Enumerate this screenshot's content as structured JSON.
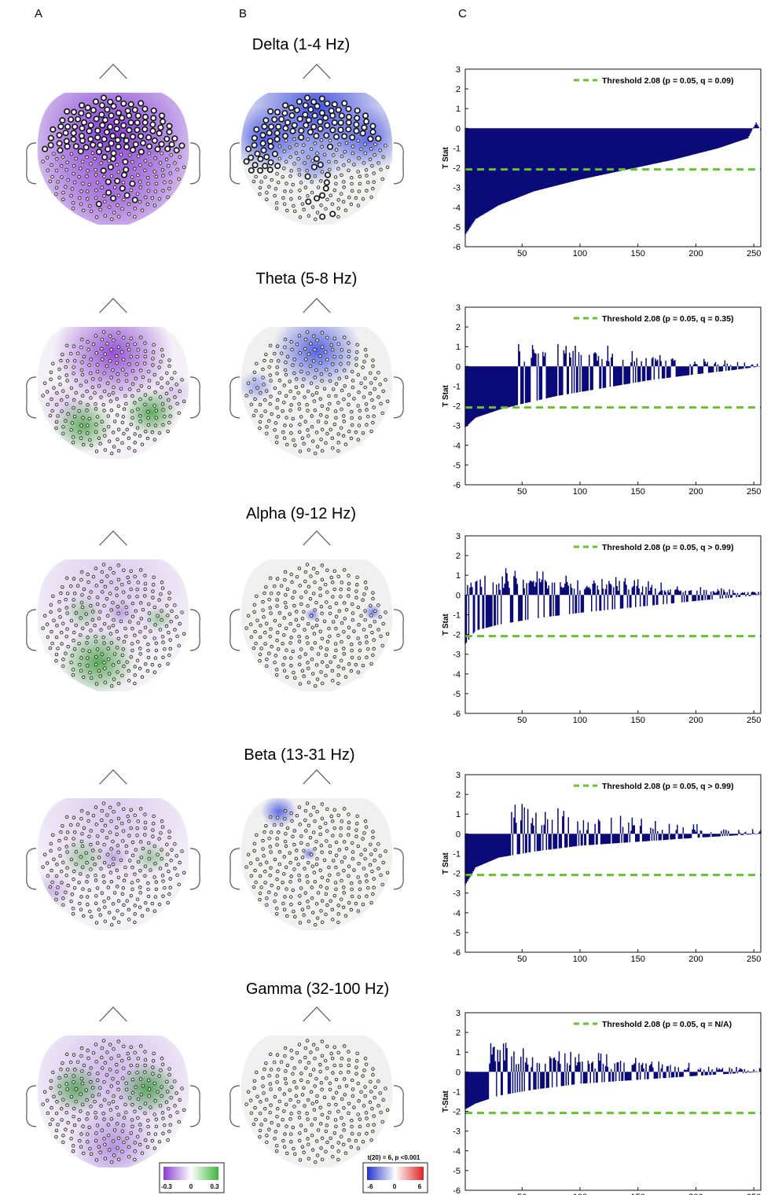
{
  "panel_labels": [
    "A",
    "B",
    "C"
  ],
  "bands": [
    {
      "title": "Delta (1-4 Hz)",
      "threshold_label": "Threshold 2.08 (p = 0.05, q = 0.09)",
      "ylabel": "T Stat"
    },
    {
      "title": "Theta (5-8 Hz)",
      "threshold_label": "Threshold 2.08 (p = 0.05, q = 0.35)",
      "ylabel": "T Stat"
    },
    {
      "title": "Alpha (9-12 Hz)",
      "threshold_label": "Threshold 2.08 (p = 0.05, q > 0.99)",
      "ylabel": "T Stat"
    },
    {
      "title": "Beta (13-31 Hz)",
      "threshold_label": "Threshold 2.08 (p = 0.05, q > 0.99)",
      "ylabel": "T Stat"
    },
    {
      "title": "Gamma (32-100 Hz)",
      "threshold_label": "Threshold 2.08 (p = 0.05, q = N/A)",
      "ylabel": "T-Stat"
    }
  ],
  "colorbar_a": {
    "ticks": [
      "-0.3",
      "0",
      "0.3"
    ],
    "colors": [
      "#8a3fd0",
      "#ffffff",
      "#3fb53f"
    ]
  },
  "colorbar_b": {
    "title": "t(20) = 6, p <0.001",
    "ticks": [
      "-6",
      "0",
      "6"
    ],
    "colors": [
      "#2233cc",
      "#ffffff",
      "#dd2222"
    ]
  },
  "colors": {
    "bar": "#0a0a78",
    "threshold": "#66c22e",
    "head_fill": "#f0f0f0"
  },
  "chart_data": [
    {
      "type": "bar",
      "title": "Delta (1-4 Hz)",
      "ylabel": "T Stat",
      "xlim": [
        1,
        256
      ],
      "ylim": [
        -6,
        3
      ],
      "xticks": [
        50,
        100,
        150,
        200,
        250
      ],
      "yticks": [
        -6,
        -5,
        -4,
        -3,
        -2,
        -1,
        0,
        1,
        2,
        3
      ],
      "threshold": -2.08,
      "n_channels": 256,
      "sorted_profile": {
        "x": [
          1,
          10,
          30,
          60,
          100,
          140,
          180,
          220,
          245,
          252,
          256
        ],
        "y": [
          -5.4,
          -4.6,
          -3.9,
          -3.2,
          -2.6,
          -2.1,
          -1.6,
          -1.0,
          -0.5,
          0.3,
          -0.1
        ]
      },
      "spike_density": 0,
      "spike_start": 0
    },
    {
      "type": "bar",
      "title": "Theta (5-8 Hz)",
      "ylabel": "T Stat",
      "xlim": [
        1,
        256
      ],
      "ylim": [
        -6,
        3
      ],
      "xticks": [
        50,
        100,
        150,
        200,
        250
      ],
      "yticks": [
        -6,
        -5,
        -4,
        -3,
        -2,
        -1,
        0,
        1,
        2,
        3
      ],
      "threshold": -2.08,
      "n_channels": 256,
      "sorted_profile": {
        "x": [
          1,
          10,
          30,
          50,
          80,
          120,
          160,
          200,
          230,
          256
        ],
        "y": [
          -3.1,
          -2.6,
          -2.2,
          -1.9,
          -1.5,
          -1.1,
          -0.7,
          -0.4,
          -0.2,
          0.0
        ]
      },
      "spike_density": 0.3,
      "spike_start": 45
    },
    {
      "type": "bar",
      "title": "Alpha (9-12 Hz)",
      "ylabel": "T Stat",
      "xlim": [
        1,
        256
      ],
      "ylim": [
        -6,
        3
      ],
      "xticks": [
        50,
        100,
        150,
        200,
        250
      ],
      "yticks": [
        -6,
        -5,
        -4,
        -3,
        -2,
        -1,
        0,
        1,
        2,
        3
      ],
      "threshold": -2.08,
      "n_channels": 256,
      "sorted_profile": {
        "x": [
          1,
          10,
          30,
          60,
          100,
          150,
          200,
          256
        ],
        "y": [
          -2.5,
          -1.8,
          -1.5,
          -1.2,
          -0.9,
          -0.6,
          -0.3,
          0.0
        ]
      },
      "spike_density": 0.55,
      "spike_start": 3
    },
    {
      "type": "bar",
      "title": "Beta (13-31 Hz)",
      "ylabel": "T Stat",
      "xlim": [
        1,
        256
      ],
      "ylim": [
        -6,
        3
      ],
      "xticks": [
        50,
        100,
        150,
        200,
        250
      ],
      "yticks": [
        -6,
        -5,
        -4,
        -3,
        -2,
        -1,
        0,
        1,
        2,
        3
      ],
      "threshold": -2.08,
      "n_channels": 256,
      "sorted_profile": {
        "x": [
          1,
          10,
          30,
          60,
          100,
          150,
          200,
          256
        ],
        "y": [
          -2.6,
          -1.7,
          -1.2,
          -0.9,
          -0.6,
          -0.4,
          -0.2,
          0.0
        ]
      },
      "spike_density": 0.3,
      "spike_start": 40
    },
    {
      "type": "bar",
      "title": "Gamma (32-100 Hz)",
      "ylabel": "T-Stat",
      "xlim": [
        1,
        256
      ],
      "ylim": [
        -6,
        3
      ],
      "xticks": [
        50,
        100,
        150,
        200,
        250
      ],
      "yticks": [
        -6,
        -5,
        -4,
        -3,
        -2,
        -1,
        0,
        1,
        2,
        3
      ],
      "threshold": -2.08,
      "n_channels": 256,
      "sorted_profile": {
        "x": [
          1,
          10,
          30,
          60,
          100,
          150,
          200,
          256
        ],
        "y": [
          -1.9,
          -1.6,
          -1.2,
          -0.9,
          -0.6,
          -0.4,
          -0.2,
          0.0
        ]
      },
      "spike_density": 0.45,
      "spike_start": 20
    }
  ],
  "topomaps": [
    {
      "band": "Delta",
      "a_blobs": [
        {
          "u": 0.5,
          "v": 0.3,
          "r": 0.75,
          "c": "#7a2fd0",
          "a": 0.95
        },
        {
          "u": 0.5,
          "v": 0.75,
          "r": 0.6,
          "c": "#9a5ad8",
          "a": 0.75
        }
      ],
      "b_blobs": [
        {
          "u": 0.5,
          "v": 0.12,
          "r": 0.55,
          "c": "#3040e0",
          "a": 0.9
        },
        {
          "u": 0.15,
          "v": 0.35,
          "r": 0.25,
          "c": "#3040e0",
          "a": 0.8
        },
        {
          "u": 0.85,
          "v": 0.35,
          "r": 0.25,
          "c": "#3040e0",
          "a": 0.7
        },
        {
          "u": 0.48,
          "v": 0.55,
          "r": 0.15,
          "c": "#5060e0",
          "a": 0.5
        }
      ],
      "b_highlight": "delta"
    },
    {
      "band": "Theta",
      "a_blobs": [
        {
          "u": 0.5,
          "v": 0.2,
          "r": 0.4,
          "c": "#8a3fd0",
          "a": 0.9
        },
        {
          "u": 0.2,
          "v": 0.6,
          "r": 0.2,
          "c": "#c0a0e0",
          "a": 0.5
        },
        {
          "u": 0.9,
          "v": 0.5,
          "r": 0.15,
          "c": "#c0a0e0",
          "a": 0.5
        },
        {
          "u": 0.3,
          "v": 0.75,
          "r": 0.2,
          "c": "#3fa040",
          "a": 0.8
        },
        {
          "u": 0.75,
          "v": 0.65,
          "r": 0.18,
          "c": "#3fa040",
          "a": 0.85
        }
      ],
      "b_blobs": [
        {
          "u": 0.5,
          "v": 0.18,
          "r": 0.3,
          "c": "#3a4ae0",
          "a": 0.85
        },
        {
          "u": 0.1,
          "v": 0.45,
          "r": 0.12,
          "c": "#5060e0",
          "a": 0.5
        }
      ],
      "b_highlight": "none"
    },
    {
      "band": "Alpha",
      "a_blobs": [
        {
          "u": 0.5,
          "v": 0.2,
          "r": 0.6,
          "c": "#c8b0ea",
          "a": 0.6
        },
        {
          "u": 0.4,
          "v": 0.78,
          "r": 0.25,
          "c": "#3fa040",
          "a": 0.85
        },
        {
          "u": 0.3,
          "v": 0.4,
          "r": 0.12,
          "c": "#70b870",
          "a": 0.6
        },
        {
          "u": 0.8,
          "v": 0.45,
          "r": 0.1,
          "c": "#70b870",
          "a": 0.6
        },
        {
          "u": 0.55,
          "v": 0.4,
          "r": 0.1,
          "c": "#a080d8",
          "a": 0.6
        }
      ],
      "b_blobs": [
        {
          "u": 0.47,
          "v": 0.42,
          "r": 0.05,
          "c": "#4050e0",
          "a": 0.7
        },
        {
          "u": 0.87,
          "v": 0.4,
          "r": 0.06,
          "c": "#4050e0",
          "a": 0.7
        }
      ],
      "b_highlight": "none"
    },
    {
      "band": "Beta",
      "a_blobs": [
        {
          "u": 0.5,
          "v": 0.15,
          "r": 0.6,
          "c": "#c8b0ea",
          "a": 0.6
        },
        {
          "u": 0.1,
          "v": 0.7,
          "r": 0.15,
          "c": "#b090e0",
          "a": 0.6
        },
        {
          "u": 0.3,
          "v": 0.45,
          "r": 0.15,
          "c": "#70b870",
          "a": 0.6
        },
        {
          "u": 0.75,
          "v": 0.45,
          "r": 0.12,
          "c": "#70b870",
          "a": 0.6
        },
        {
          "u": 0.5,
          "v": 0.45,
          "r": 0.1,
          "c": "#a080d8",
          "a": 0.6
        }
      ],
      "b_blobs": [
        {
          "u": 0.25,
          "v": 0.1,
          "r": 0.12,
          "c": "#3a4ae0",
          "a": 0.8
        },
        {
          "u": 0.45,
          "v": 0.42,
          "r": 0.05,
          "c": "#4050e0",
          "a": 0.7
        }
      ],
      "b_highlight": "none"
    },
    {
      "band": "Gamma",
      "a_blobs": [
        {
          "u": 0.5,
          "v": 0.3,
          "r": 0.6,
          "c": "#b898e6",
          "a": 0.65
        },
        {
          "u": 0.25,
          "v": 0.4,
          "r": 0.18,
          "c": "#3fa040",
          "a": 0.8
        },
        {
          "u": 0.73,
          "v": 0.4,
          "r": 0.2,
          "c": "#3fa040",
          "a": 0.85
        },
        {
          "u": 0.5,
          "v": 0.85,
          "r": 0.3,
          "c": "#9a6ad8",
          "a": 0.7
        }
      ],
      "b_blobs": [],
      "b_highlight": "none"
    }
  ]
}
